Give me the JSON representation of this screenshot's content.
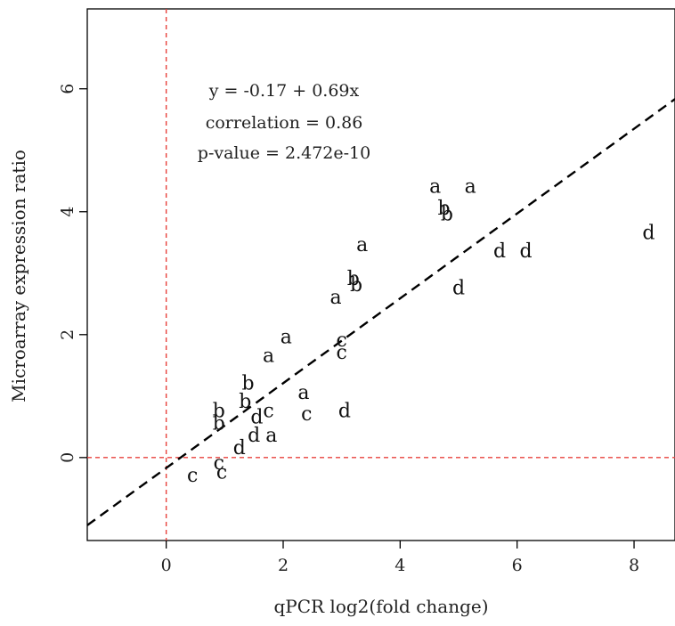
{
  "chart_data": {
    "type": "scatter",
    "xlabel": "qPCR log2(fold change)",
    "ylabel": "Microarray expression ratio",
    "xlim": [
      -1.35,
      8.7
    ],
    "ylim": [
      -1.35,
      7.3
    ],
    "xticks": [
      0,
      2,
      4,
      6,
      8
    ],
    "yticks": [
      0,
      2,
      4,
      6
    ],
    "tick_labels_x": [
      "0",
      "2",
      "4",
      "6",
      "8"
    ],
    "tick_labels_y": [
      "0",
      "2",
      "4",
      "6"
    ],
    "grid": false,
    "regression": {
      "intercept": -0.17,
      "slope": 0.69
    },
    "reference_lines": {
      "x": 0,
      "y": 0
    },
    "annotations": [
      "y = -0.17 + 0.69x",
      "correlation = 0.86",
      "p-value = 2.472e-10"
    ],
    "points": [
      {
        "label": "a",
        "x": 4.6,
        "y": 4.4
      },
      {
        "label": "a",
        "x": 5.2,
        "y": 4.4
      },
      {
        "label": "b",
        "x": 4.75,
        "y": 4.05
      },
      {
        "label": "b",
        "x": 4.8,
        "y": 3.95
      },
      {
        "label": "a",
        "x": 3.35,
        "y": 3.45
      },
      {
        "label": "d",
        "x": 8.25,
        "y": 3.65
      },
      {
        "label": "d",
        "x": 5.7,
        "y": 3.35
      },
      {
        "label": "d",
        "x": 6.15,
        "y": 3.35
      },
      {
        "label": "b",
        "x": 3.2,
        "y": 2.9
      },
      {
        "label": "b",
        "x": 3.25,
        "y": 2.8
      },
      {
        "label": "d",
        "x": 5.0,
        "y": 2.75
      },
      {
        "label": "a",
        "x": 2.9,
        "y": 2.6
      },
      {
        "label": "a",
        "x": 2.05,
        "y": 1.95
      },
      {
        "label": "c",
        "x": 3.0,
        "y": 1.9
      },
      {
        "label": "c",
        "x": 3.0,
        "y": 1.7
      },
      {
        "label": "a",
        "x": 1.75,
        "y": 1.65
      },
      {
        "label": "b",
        "x": 1.4,
        "y": 1.2
      },
      {
        "label": "a",
        "x": 2.35,
        "y": 1.05
      },
      {
        "label": "b",
        "x": 1.35,
        "y": 0.9
      },
      {
        "label": "b",
        "x": 0.9,
        "y": 0.75
      },
      {
        "label": "c",
        "x": 1.75,
        "y": 0.75
      },
      {
        "label": "c",
        "x": 2.4,
        "y": 0.7
      },
      {
        "label": "d",
        "x": 3.05,
        "y": 0.75
      },
      {
        "label": "d",
        "x": 1.55,
        "y": 0.65
      },
      {
        "label": "b",
        "x": 0.9,
        "y": 0.55
      },
      {
        "label": "d",
        "x": 1.5,
        "y": 0.35
      },
      {
        "label": "a",
        "x": 1.8,
        "y": 0.35
      },
      {
        "label": "d",
        "x": 1.25,
        "y": 0.15
      },
      {
        "label": "c",
        "x": 0.9,
        "y": -0.1
      },
      {
        "label": "c",
        "x": 0.95,
        "y": -0.25
      },
      {
        "label": "c",
        "x": 0.45,
        "y": -0.3
      }
    ]
  },
  "style": {
    "axis_color": "#000000",
    "reference_line_color": "#e8413c",
    "regression_line_color": "#000000",
    "text_color": "#222222"
  }
}
